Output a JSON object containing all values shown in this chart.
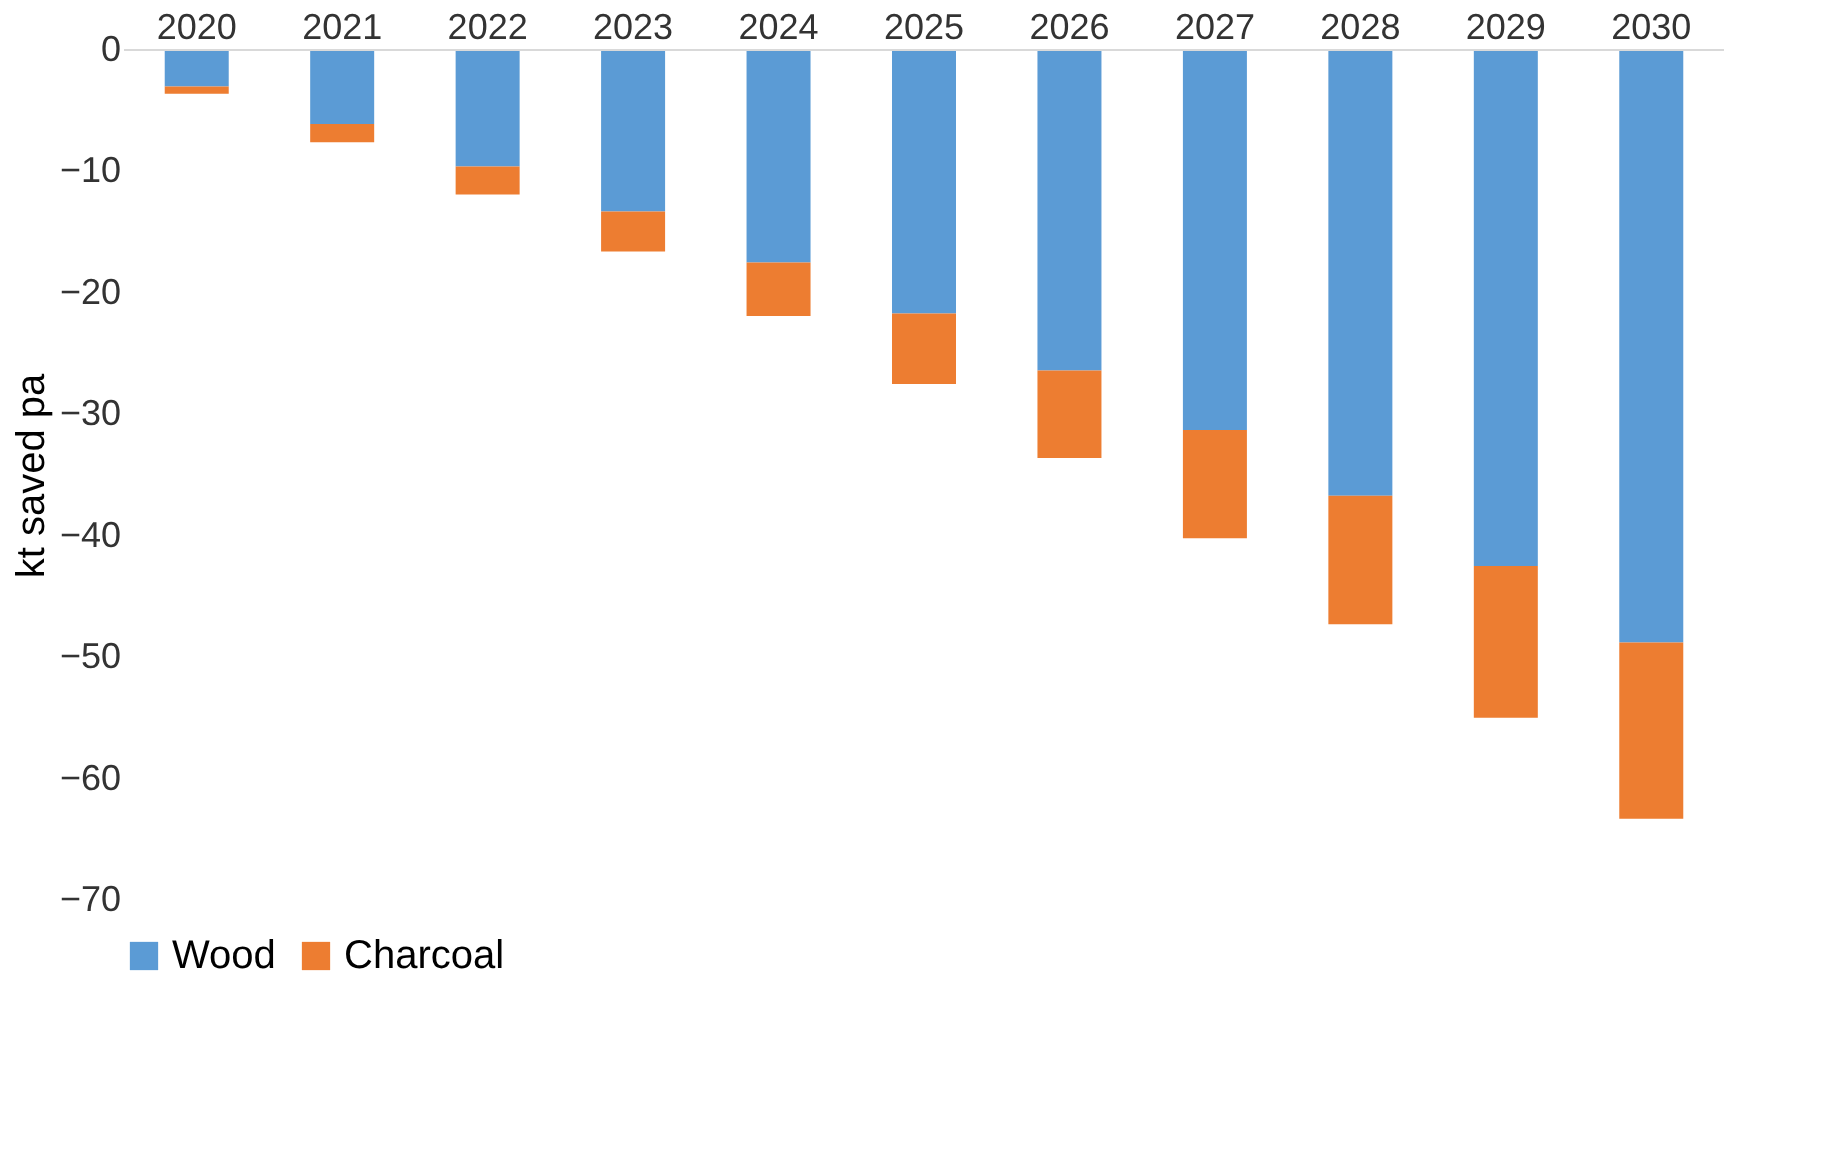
{
  "chart_data": {
    "type": "bar",
    "stacked": true,
    "ylabel": "kt saved pa",
    "categories": [
      "2020",
      "2021",
      "2022",
      "2023",
      "2024",
      "2025",
      "2026",
      "2027",
      "2028",
      "2029",
      "2030"
    ],
    "series": [
      {
        "name": "Wood",
        "color": "#5b9bd5",
        "values": [
          -3.0,
          -6.1,
          -9.6,
          -13.3,
          -17.5,
          -21.7,
          -26.4,
          -31.3,
          -36.7,
          -42.5,
          -48.8
        ]
      },
      {
        "name": "Charcoal",
        "color": "#ed7d31",
        "values": [
          -0.6,
          -1.5,
          -2.3,
          -3.3,
          -4.4,
          -5.8,
          -7.2,
          -8.9,
          -10.6,
          -12.5,
          -14.5
        ]
      }
    ],
    "ylim": [
      -70,
      0
    ],
    "yticks": [
      0,
      -10,
      -20,
      -30,
      -40,
      -50,
      -60,
      -70
    ],
    "grid": false,
    "legend": "bottom"
  }
}
